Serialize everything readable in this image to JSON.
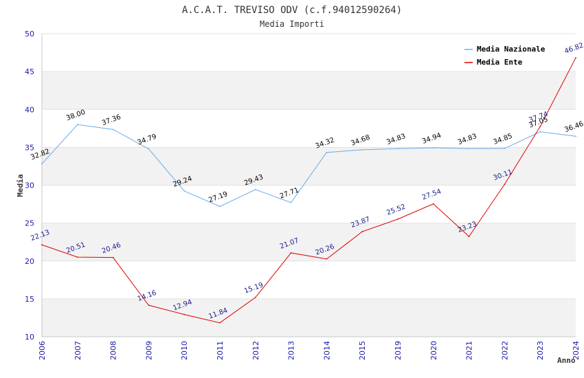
{
  "chart_data": {
    "type": "line",
    "title": "A.C.A.T. TREVISO ODV (c.f.94012590264)",
    "subtitle": "Media Importi",
    "xlabel": "Anno",
    "ylabel": "Media",
    "ylim": [
      10,
      50
    ],
    "yticks": [
      "10",
      "15",
      "20",
      "25",
      "30",
      "35",
      "40",
      "45",
      "50"
    ],
    "grid": true,
    "legend_position": "top-right",
    "categories": [
      "2006",
      "2007",
      "2008",
      "2009",
      "2010",
      "2011",
      "2012",
      "2013",
      "2014",
      "2015",
      "2019",
      "2020",
      "2021",
      "2022",
      "2023",
      "2024"
    ],
    "series": [
      {
        "name": "Media Nazionale",
        "color": "#6aaae8",
        "label_color": "#000000",
        "values": [
          32.82,
          38.0,
          37.36,
          34.79,
          29.24,
          27.19,
          29.43,
          27.71,
          34.32,
          34.68,
          34.83,
          34.94,
          34.83,
          34.85,
          37.05,
          36.46
        ],
        "labels": [
          "32.82",
          "38.00",
          "37.36",
          "34.79",
          "29.24",
          "27.19",
          "29.43",
          "27.71",
          "34.32",
          "34.68",
          "34.83",
          "34.94",
          "34.83",
          "34.85",
          "37.05",
          "36.46"
        ]
      },
      {
        "name": "Media Ente",
        "color": "#e00000",
        "label_color": "#1a1a8c",
        "values": [
          22.13,
          20.51,
          20.46,
          14.16,
          12.94,
          11.84,
          15.19,
          21.07,
          20.26,
          23.87,
          25.52,
          27.54,
          23.23,
          30.11,
          37.74,
          46.82
        ],
        "labels": [
          "22.13",
          "20.51",
          "20.46",
          "14.16",
          "12.94",
          "11.84",
          "15.19",
          "21.07",
          "20.26",
          "23.87",
          "25.52",
          "27.54",
          "23.23",
          "30.11",
          "37.74",
          "46.82"
        ]
      }
    ]
  }
}
